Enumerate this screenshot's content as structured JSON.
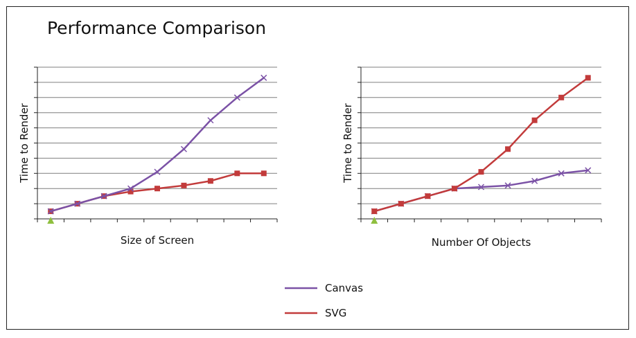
{
  "title": "Performance Comparison",
  "colors": {
    "canvas": "#7b52a6",
    "svg": "#c23b3b",
    "origin_marker": "#8fbf3f"
  },
  "legend": {
    "position": "bottom-center",
    "items": [
      {
        "label": "Canvas",
        "color": "#7b52a6"
      },
      {
        "label": "SVG",
        "color": "#c23b3b"
      }
    ]
  },
  "chart_data": [
    {
      "type": "line",
      "title": "",
      "xlabel": "Size of Screen",
      "ylabel": "Time to Render",
      "x": [
        1,
        2,
        3,
        4,
        5,
        6,
        7,
        8,
        9
      ],
      "xlim": [
        0.5,
        9.5
      ],
      "ylim": [
        0,
        10
      ],
      "grid": true,
      "series": [
        {
          "name": "Canvas",
          "marker": "x",
          "values": [
            0.5,
            1.0,
            1.5,
            2.0,
            3.1,
            4.6,
            6.5,
            8.0,
            9.3
          ]
        },
        {
          "name": "SVG",
          "marker": "square",
          "values": [
            0.5,
            1.0,
            1.5,
            1.8,
            2.0,
            2.2,
            2.5,
            3.0,
            3.0
          ]
        }
      ]
    },
    {
      "type": "line",
      "title": "",
      "xlabel": "Number Of Objects",
      "ylabel": "Time to Render",
      "x": [
        1,
        2,
        3,
        4,
        5,
        6,
        7,
        8,
        9
      ],
      "xlim": [
        0.5,
        9.5
      ],
      "ylim": [
        0,
        10
      ],
      "grid": true,
      "series": [
        {
          "name": "Canvas",
          "marker": "x",
          "values": [
            0.5,
            1.0,
            1.5,
            2.0,
            2.1,
            2.2,
            2.5,
            3.0,
            3.2
          ]
        },
        {
          "name": "SVG",
          "marker": "square",
          "values": [
            0.5,
            1.0,
            1.5,
            2.0,
            3.1,
            4.6,
            6.5,
            8.0,
            9.3
          ]
        }
      ]
    }
  ]
}
